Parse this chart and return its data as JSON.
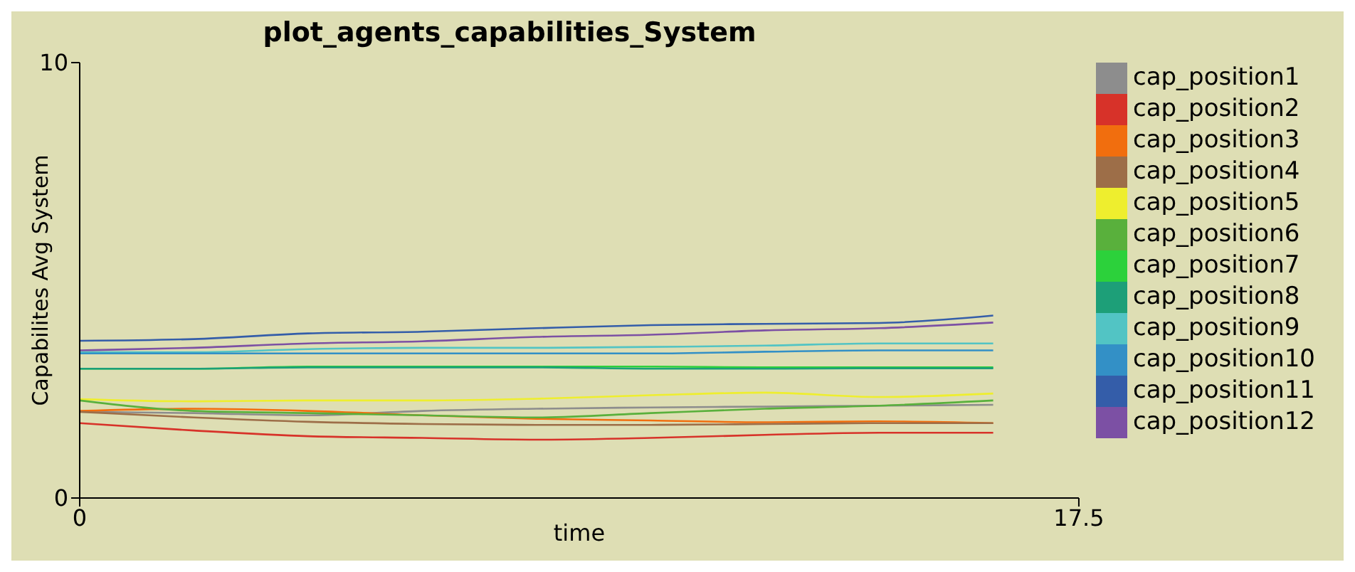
{
  "chart_data": {
    "type": "line",
    "title": "plot_agents_capabilities_System",
    "xlabel": "time",
    "ylabel": "Capabilites Avg System",
    "x": [
      0,
      2,
      4,
      6,
      8,
      10,
      12,
      14,
      16
    ],
    "xlim": [
      0,
      17.5
    ],
    "xticks": [
      0,
      17.5
    ],
    "ylim": [
      0,
      10
    ],
    "yticks": [
      0,
      10
    ],
    "grid": false,
    "legend": "right",
    "marker": "none",
    "line_style": "solid",
    "series": [
      {
        "name": "cap_position1",
        "color": "#8d8d8d",
        "values": [
          1.98,
          1.95,
          1.9,
          2.0,
          2.05,
          2.08,
          2.1,
          2.12,
          2.14
        ]
      },
      {
        "name": "cap_position2",
        "color": "#d73229",
        "values": [
          1.72,
          1.55,
          1.42,
          1.38,
          1.34,
          1.38,
          1.45,
          1.5,
          1.5
        ]
      },
      {
        "name": "cap_position3",
        "color": "#f16e0e",
        "values": [
          2.0,
          2.05,
          2.0,
          1.9,
          1.82,
          1.78,
          1.74,
          1.76,
          1.72
        ]
      },
      {
        "name": "cap_position4",
        "color": "#9d6e48",
        "values": [
          1.98,
          1.85,
          1.75,
          1.7,
          1.68,
          1.68,
          1.7,
          1.72,
          1.72
        ]
      },
      {
        "name": "cap_position5",
        "color": "#eeee2e",
        "values": [
          2.27,
          2.22,
          2.24,
          2.24,
          2.28,
          2.36,
          2.42,
          2.32,
          2.4
        ]
      },
      {
        "name": "cap_position6",
        "color": "#59b03c",
        "values": [
          2.24,
          2.0,
          1.95,
          1.9,
          1.85,
          1.95,
          2.05,
          2.12,
          2.24
        ]
      },
      {
        "name": "cap_position7",
        "color": "#2cd13b",
        "values": [
          2.97,
          2.97,
          3.02,
          3.02,
          3.02,
          3.02,
          3.0,
          3.0,
          3.0
        ]
      },
      {
        "name": "cap_position8",
        "color": "#1d9f78",
        "values": [
          2.97,
          2.97,
          3.0,
          3.0,
          3.0,
          2.97,
          2.97,
          2.98,
          2.98
        ]
      },
      {
        "name": "cap_position9",
        "color": "#52c4c4",
        "values": [
          3.35,
          3.35,
          3.42,
          3.45,
          3.45,
          3.47,
          3.5,
          3.55,
          3.55
        ]
      },
      {
        "name": "cap_position10",
        "color": "#3390c6",
        "values": [
          3.32,
          3.32,
          3.32,
          3.32,
          3.32,
          3.32,
          3.36,
          3.39,
          3.39
        ]
      },
      {
        "name": "cap_position11",
        "color": "#345da9",
        "values": [
          3.61,
          3.65,
          3.78,
          3.82,
          3.9,
          3.97,
          4.0,
          4.02,
          4.19
        ]
      },
      {
        "name": "cap_position12",
        "color": "#7c50a4",
        "values": [
          3.39,
          3.45,
          3.55,
          3.6,
          3.7,
          3.75,
          3.85,
          3.9,
          4.03
        ]
      }
    ]
  }
}
